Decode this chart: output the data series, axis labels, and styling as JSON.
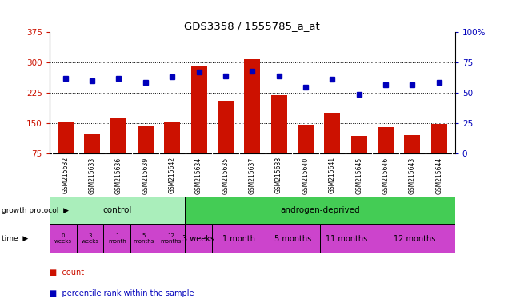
{
  "title": "GDS3358 / 1555785_a_at",
  "samples": [
    "GSM215632",
    "GSM215633",
    "GSM215636",
    "GSM215639",
    "GSM215642",
    "GSM215634",
    "GSM215635",
    "GSM215637",
    "GSM215638",
    "GSM215640",
    "GSM215641",
    "GSM215645",
    "GSM215646",
    "GSM215643",
    "GSM215644"
  ],
  "counts": [
    152,
    125,
    162,
    143,
    155,
    293,
    205,
    308,
    220,
    146,
    175,
    118,
    140,
    120,
    148
  ],
  "percentiles": [
    62,
    60,
    62,
    59,
    63,
    67,
    64,
    68,
    64,
    55,
    61,
    49,
    57,
    57,
    59
  ],
  "ylim_left": [
    75,
    375
  ],
  "ylim_right": [
    0,
    100
  ],
  "yticks_left": [
    75,
    150,
    225,
    300,
    375
  ],
  "yticks_right": [
    0,
    25,
    50,
    75,
    100
  ],
  "bar_color": "#cc1100",
  "dot_color": "#0000bb",
  "bg_color": "#ffffff",
  "control_color": "#aaeebb",
  "androgen_color": "#44cc55",
  "time_color": "#cc44cc",
  "sample_bg": "#cccccc",
  "growth_protocol_label": "growth protocol",
  "time_label": "time",
  "legend_count": "count",
  "legend_percentile": "percentile rank within the sample",
  "control_label": "control",
  "androgen_label": "androgen-deprived",
  "time_labels_control": [
    "0\nweeks",
    "3\nweeks",
    "1\nmonth",
    "5\nmonths",
    "12\nmonths"
  ],
  "time_labels_androgen": [
    [
      "3 weeks",
      1
    ],
    [
      "1 month",
      2
    ],
    [
      "5 months",
      2
    ],
    [
      "11 months",
      2
    ],
    [
      "12 months",
      3
    ]
  ],
  "n_control": 5,
  "n_androgen": 10
}
